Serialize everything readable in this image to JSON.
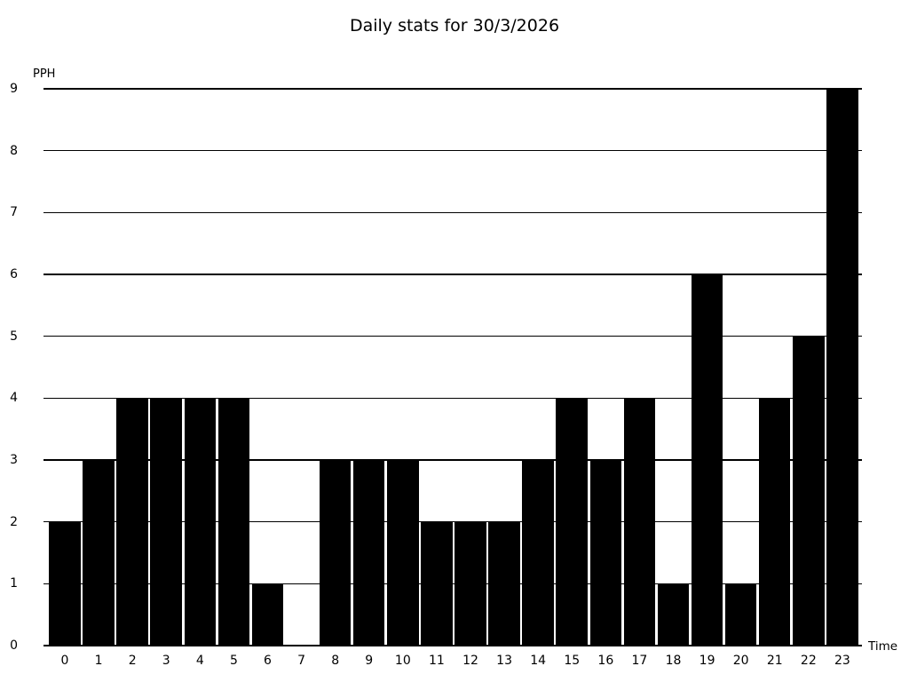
{
  "title": "Daily stats for 30/3/2026",
  "chart_data": {
    "type": "bar",
    "title": "Daily stats for 30/3/2026",
    "xlabel": "Time",
    "ylabel": "PPH",
    "categories": [
      "0",
      "1",
      "2",
      "3",
      "4",
      "5",
      "6",
      "7",
      "8",
      "9",
      "10",
      "11",
      "12",
      "13",
      "14",
      "15",
      "16",
      "17",
      "18",
      "19",
      "20",
      "21",
      "22",
      "23"
    ],
    "values": [
      2,
      3,
      4,
      4,
      4,
      4,
      1,
      0,
      3,
      3,
      3,
      2,
      2,
      2,
      3,
      4,
      3,
      4,
      1,
      6,
      1,
      4,
      5,
      9
    ],
    "ylim": [
      0,
      9
    ],
    "yticks": [
      0,
      1,
      2,
      3,
      4,
      5,
      6,
      7,
      8,
      9
    ],
    "grid": "horizontal",
    "legend": "none",
    "bar_color": "#000000",
    "background_color": "#ffffff"
  }
}
